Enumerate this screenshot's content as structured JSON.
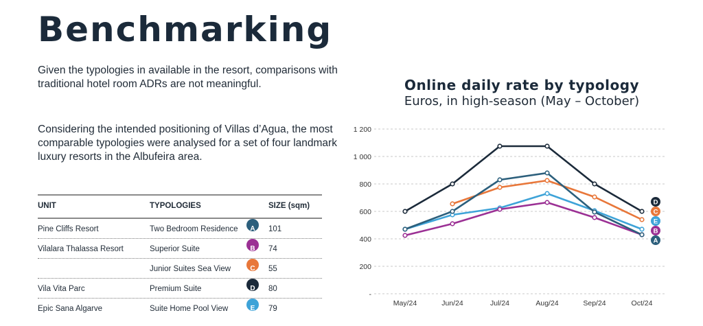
{
  "page": {
    "title": "Benchmarking",
    "paragraph1": "Given the typologies in available in the resort, comparisons with traditional hotel room ADRs are not meaningful.",
    "paragraph2": "Considering the intended positioning of Villas d’Agua, the most comparable typologies were analysed for a set of four landmark luxury resorts in the Albufeira area."
  },
  "table": {
    "headers": [
      "UNIT",
      "TYPOLOGIES",
      "SIZE (sqm)"
    ],
    "rows": [
      {
        "unit": "Pine Cliffs Resort",
        "typology": "Two Bedroom Residence",
        "badge": "A",
        "size": "101"
      },
      {
        "unit": "Vilalara Thalassa Resort",
        "typology": "Superior Suite",
        "badge": "B",
        "size": "74"
      },
      {
        "unit": "",
        "typology": "Junior Suites Sea View",
        "badge": "C",
        "size": "55"
      },
      {
        "unit": "Vila Vita Parc",
        "typology": "Premium Suite",
        "badge": "D",
        "size": "80"
      },
      {
        "unit": "Epic Sana Algarve",
        "typology": "Suite Home Pool View",
        "badge": "E",
        "size": "79"
      }
    ]
  },
  "chart_data": {
    "type": "line",
    "title": "Online daily rate by typology",
    "subtitle": "Euros, in high-season (May – October)",
    "categories": [
      "May/24",
      "Jun/24",
      "Jul/24",
      "Aug/24",
      "Sep/24",
      "Oct/24"
    ],
    "y_ticks": [
      "-",
      "200",
      "400",
      "600",
      "800",
      "1 000",
      "1 200"
    ],
    "y_tick_values": [
      0,
      200,
      400,
      600,
      800,
      1000,
      1200
    ],
    "ylim": [
      0,
      1200
    ],
    "grid": true,
    "legend": "right",
    "series": [
      {
        "name": "D",
        "color": "#1b2a3a",
        "values": [
          600,
          800,
          1075,
          1075,
          800,
          600
        ]
      },
      {
        "name": "C",
        "color": "#e8773a",
        "values": [
          null,
          655,
          775,
          825,
          705,
          540
        ]
      },
      {
        "name": "E",
        "color": "#3ea3d8",
        "values": [
          470,
          575,
          625,
          730,
          605,
          470
        ]
      },
      {
        "name": "B",
        "color": "#9b3094",
        "values": [
          425,
          510,
          615,
          665,
          555,
          430
        ]
      },
      {
        "name": "A",
        "color": "#2c5f7c",
        "values": [
          470,
          600,
          830,
          880,
          595,
          430
        ]
      }
    ]
  }
}
